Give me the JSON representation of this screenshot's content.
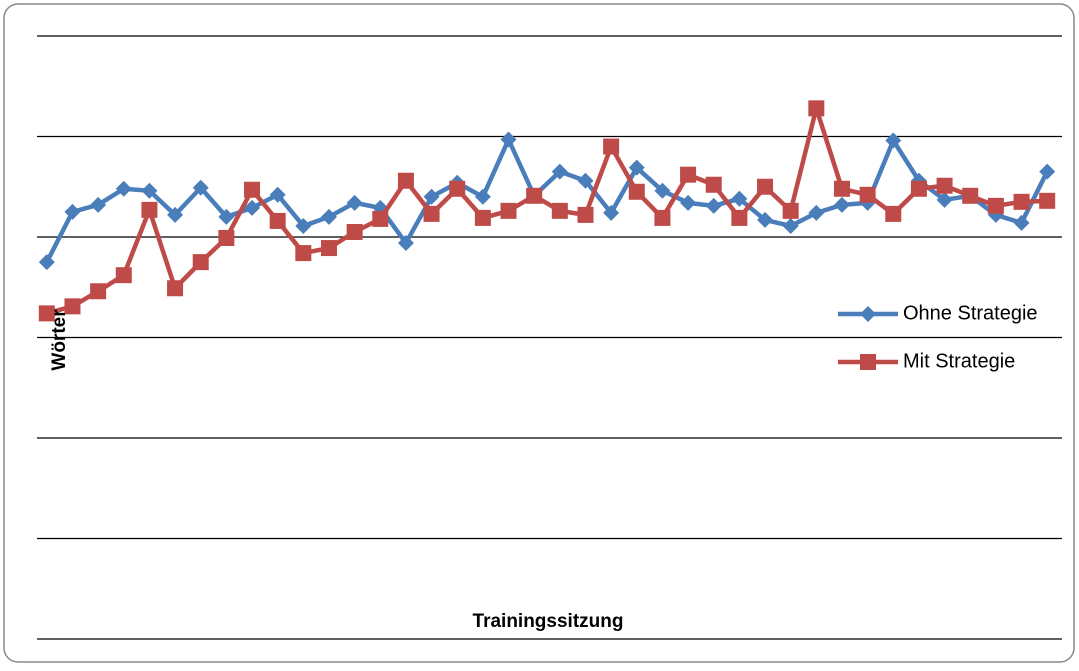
{
  "chart_data": {
    "type": "line",
    "y_label": "Wörter",
    "x_label": "Trainingssitzung",
    "categories": [
      null,
      null,
      null,
      null,
      null,
      null,
      null,
      null,
      null,
      null,
      null,
      null,
      null,
      null,
      null,
      null,
      null,
      null,
      null,
      null,
      null,
      null,
      null,
      null,
      null,
      null,
      null,
      null,
      null,
      null,
      null,
      null,
      null,
      null,
      null,
      null,
      null,
      null,
      null,
      null
    ],
    "series": [
      {
        "name": "Ohne Strategie",
        "color": "#4a7ebb",
        "marker": "diamond",
        "values": [
          3.75,
          4.25,
          4.32,
          4.48,
          4.46,
          4.22,
          4.49,
          4.2,
          4.29,
          4.42,
          4.11,
          4.2,
          4.34,
          4.29,
          3.94,
          4.4,
          4.54,
          4.4,
          4.97,
          4.41,
          4.65,
          4.56,
          4.24,
          4.69,
          4.46,
          4.34,
          4.31,
          4.38,
          4.17,
          4.11,
          4.24,
          4.32,
          4.34,
          4.96,
          4.56,
          4.37,
          4.41,
          4.22,
          4.14,
          4.65
        ]
      },
      {
        "name": "Mit Strategie",
        "color": "#be4b48",
        "marker": "square",
        "values": [
          3.24,
          3.31,
          3.46,
          3.62,
          4.27,
          3.49,
          3.75,
          3.99,
          4.47,
          4.16,
          3.84,
          3.89,
          4.05,
          4.18,
          4.56,
          4.23,
          4.48,
          4.19,
          4.26,
          4.41,
          4.26,
          4.22,
          4.9,
          4.45,
          4.19,
          4.62,
          4.52,
          4.19,
          4.5,
          4.26,
          5.28,
          4.48,
          4.42,
          4.23,
          4.48,
          4.51,
          4.41,
          4.31,
          4.35,
          4.36
        ]
      }
    ],
    "ylim": [
      0,
      6
    ],
    "yticks": [
      0,
      1,
      2,
      3,
      4,
      5,
      6
    ],
    "grid": true,
    "legend": "right"
  }
}
